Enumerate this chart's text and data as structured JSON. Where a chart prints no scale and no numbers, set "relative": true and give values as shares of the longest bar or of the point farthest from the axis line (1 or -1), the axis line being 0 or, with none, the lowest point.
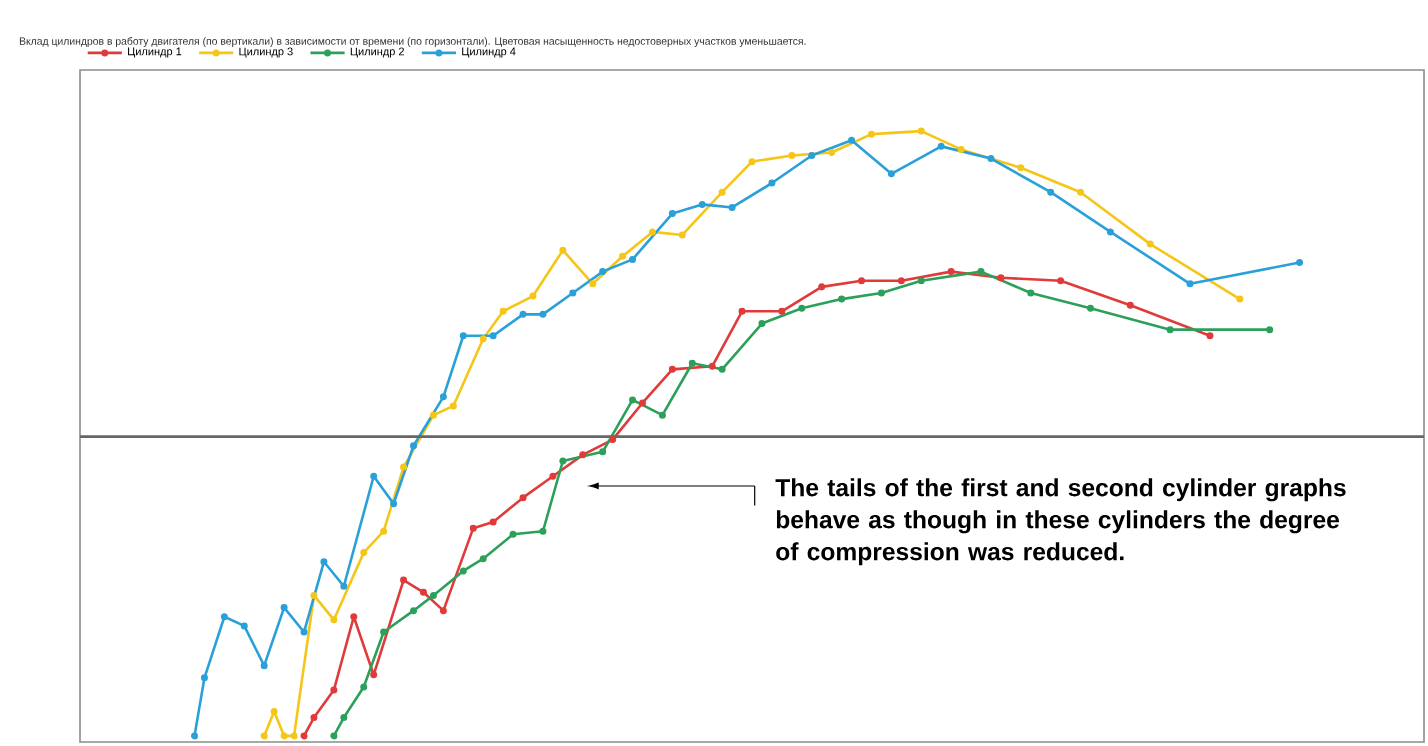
{
  "chart_data": {
    "type": "line",
    "title": "Вклад цилиндров в работу двигателя (по вертикали) в зависимости от времени (по горизонтали). Цветовая насыщенность недостоверных участков уменьшается.",
    "relative": true,
    "marker": "circle",
    "line_style": "solid",
    "legend": "top left",
    "categories": [
      null,
      null,
      null,
      null,
      null,
      null,
      null,
      null,
      null,
      null,
      null,
      null,
      null,
      null,
      null,
      null,
      null,
      null,
      null,
      null,
      null,
      null,
      null,
      null,
      null,
      null,
      null,
      null,
      null,
      null,
      null,
      null,
      null,
      null,
      null,
      null,
      null,
      null,
      null,
      null,
      null,
      null,
      null,
      null,
      null,
      null,
      null,
      null,
      null,
      null,
      null,
      null,
      null,
      null,
      null,
      null,
      null,
      null,
      null,
      null,
      null,
      null,
      null,
      null,
      null,
      null,
      null,
      null,
      null,
      null,
      null,
      null,
      null,
      null,
      null,
      null,
      null,
      null,
      null,
      null,
      null,
      null,
      null,
      null,
      null,
      null,
      null,
      null,
      null,
      null,
      null,
      null,
      null,
      null,
      null,
      null,
      null,
      null,
      null,
      null,
      null,
      null,
      null,
      null,
      null,
      null,
      null,
      null,
      null,
      null,
      null,
      null,
      null,
      null,
      null,
      null,
      null,
      null,
      null,
      null,
      null,
      null,
      null,
      null,
      null,
      null,
      null,
      null,
      null,
      null,
      null,
      null,
      null,
      null,
      null
    ],
    "series": [
      {
        "name": "Цилиндр 1",
        "color": "#e03a3a",
        "values": [
          null,
          null,
          null,
          null,
          null,
          null,
          null,
          null,
          null,
          null,
          null,
          null,
          null,
          null,
          null,
          null,
          null,
          null,
          null,
          null,
          null,
          null,
          -0.98,
          -0.92,
          null,
          -0.83,
          null,
          -0.59,
          null,
          -0.78,
          null,
          null,
          -0.47,
          null,
          -0.51,
          null,
          -0.57,
          null,
          null,
          -0.3,
          null,
          -0.28,
          null,
          null,
          -0.2,
          null,
          null,
          -0.13,
          null,
          null,
          -0.06,
          null,
          null,
          -0.01,
          null,
          null,
          0.11,
          null,
          null,
          0.22,
          null,
          null,
          null,
          0.23,
          null,
          null,
          0.41,
          null,
          null,
          null,
          0.41,
          null,
          null,
          null,
          0.49,
          null,
          null,
          null,
          0.51,
          null,
          null,
          null,
          0.51,
          null,
          null,
          null,
          null,
          0.54,
          null,
          null,
          null,
          null,
          0.52,
          null,
          null,
          null,
          null,
          null,
          0.51,
          null,
          null,
          null,
          null,
          null,
          null,
          0.43,
          null,
          null,
          null,
          null,
          null,
          null,
          null,
          0.33,
          null,
          null,
          null,
          null,
          null,
          null,
          null,
          null,
          null,
          null,
          null,
          null,
          null,
          null,
          null,
          null,
          null,
          null,
          null,
          null,
          null
        ]
      },
      {
        "name": "Цилиндр 3",
        "color": "#f5c518",
        "values": [
          null,
          null,
          null,
          null,
          null,
          null,
          null,
          null,
          null,
          null,
          null,
          null,
          null,
          null,
          null,
          null,
          null,
          null,
          -0.98,
          -0.9,
          -0.98,
          -0.98,
          null,
          -0.52,
          null,
          -0.6,
          null,
          null,
          -0.38,
          null,
          -0.31,
          null,
          -0.1,
          null,
          null,
          0.07,
          null,
          0.1,
          null,
          null,
          0.32,
          null,
          0.41,
          null,
          null,
          0.46,
          null,
          null,
          0.61,
          null,
          null,
          0.5,
          null,
          null,
          0.59,
          null,
          null,
          0.67,
          null,
          null,
          0.66,
          null,
          null,
          null,
          0.8,
          null,
          null,
          0.9,
          null,
          null,
          null,
          0.92,
          null,
          null,
          null,
          0.93,
          null,
          null,
          null,
          0.99,
          null,
          null,
          null,
          null,
          1.0,
          null,
          null,
          null,
          0.94,
          null,
          null,
          null,
          null,
          null,
          0.88,
          null,
          null,
          null,
          null,
          null,
          0.8,
          null,
          null,
          null,
          null,
          null,
          null,
          0.63,
          null,
          null,
          null,
          null,
          null,
          null,
          null,
          null,
          0.45,
          null,
          null,
          null,
          null,
          null,
          null,
          null,
          null,
          null,
          null,
          null,
          null,
          null,
          null,
          null,
          null,
          null,
          null
        ]
      },
      {
        "name": "Цилиндр 2",
        "color": "#2ca05a",
        "values": [
          null,
          null,
          null,
          null,
          null,
          null,
          null,
          null,
          null,
          null,
          null,
          null,
          null,
          null,
          null,
          null,
          null,
          null,
          null,
          null,
          null,
          null,
          null,
          null,
          null,
          -0.98,
          -0.92,
          null,
          -0.82,
          null,
          -0.64,
          null,
          null,
          -0.57,
          null,
          -0.52,
          null,
          null,
          -0.44,
          null,
          -0.4,
          null,
          null,
          -0.32,
          null,
          null,
          -0.31,
          null,
          -0.08,
          null,
          null,
          null,
          -0.05,
          null,
          null,
          0.12,
          null,
          null,
          0.07,
          null,
          null,
          0.24,
          null,
          null,
          0.22,
          null,
          null,
          null,
          0.37,
          null,
          null,
          null,
          0.42,
          null,
          null,
          null,
          0.45,
          null,
          null,
          null,
          0.47,
          null,
          null,
          null,
          0.51,
          null,
          null,
          null,
          null,
          null,
          0.54,
          null,
          null,
          null,
          null,
          0.47,
          null,
          null,
          null,
          null,
          null,
          0.42,
          null,
          null,
          null,
          null,
          null,
          null,
          null,
          0.35,
          null,
          null,
          null,
          null,
          null,
          null,
          null,
          null,
          null,
          0.35,
          null,
          null,
          null,
          null,
          null,
          null,
          null,
          null,
          null,
          null,
          null,
          null,
          null,
          null,
          null
        ]
      },
      {
        "name": "Цилиндр 4",
        "color": "#2aa0d8",
        "values": [
          null,
          null,
          null,
          null,
          null,
          null,
          null,
          null,
          null,
          null,
          null,
          -0.98,
          -0.79,
          null,
          -0.59,
          null,
          -0.62,
          null,
          -0.75,
          null,
          -0.56,
          null,
          -0.64,
          null,
          -0.41,
          null,
          -0.49,
          null,
          null,
          -0.13,
          null,
          -0.22,
          null,
          -0.03,
          null,
          null,
          0.13,
          null,
          0.33,
          null,
          null,
          0.33,
          null,
          null,
          0.4,
          null,
          0.4,
          null,
          null,
          0.47,
          null,
          null,
          0.54,
          null,
          null,
          0.58,
          null,
          null,
          null,
          0.73,
          null,
          null,
          0.76,
          null,
          null,
          0.75,
          null,
          null,
          null,
          0.83,
          null,
          null,
          null,
          0.92,
          null,
          null,
          null,
          0.97,
          null,
          null,
          null,
          0.86,
          null,
          null,
          null,
          null,
          0.95,
          null,
          null,
          null,
          null,
          0.91,
          null,
          null,
          null,
          null,
          null,
          0.8,
          null,
          null,
          null,
          null,
          null,
          0.67,
          null,
          null,
          null,
          null,
          null,
          null,
          null,
          0.5,
          null,
          null,
          null,
          null,
          null,
          null,
          null,
          null,
          null,
          null,
          0.57,
          null,
          null,
          null,
          null,
          null,
          null,
          null,
          null,
          null,
          null,
          null,
          null
        ]
      }
    ],
    "annotations": [
      "The tails of the first and second cylinder graphs behave as though in these cylinders the degree of compression was reduced."
    ]
  }
}
